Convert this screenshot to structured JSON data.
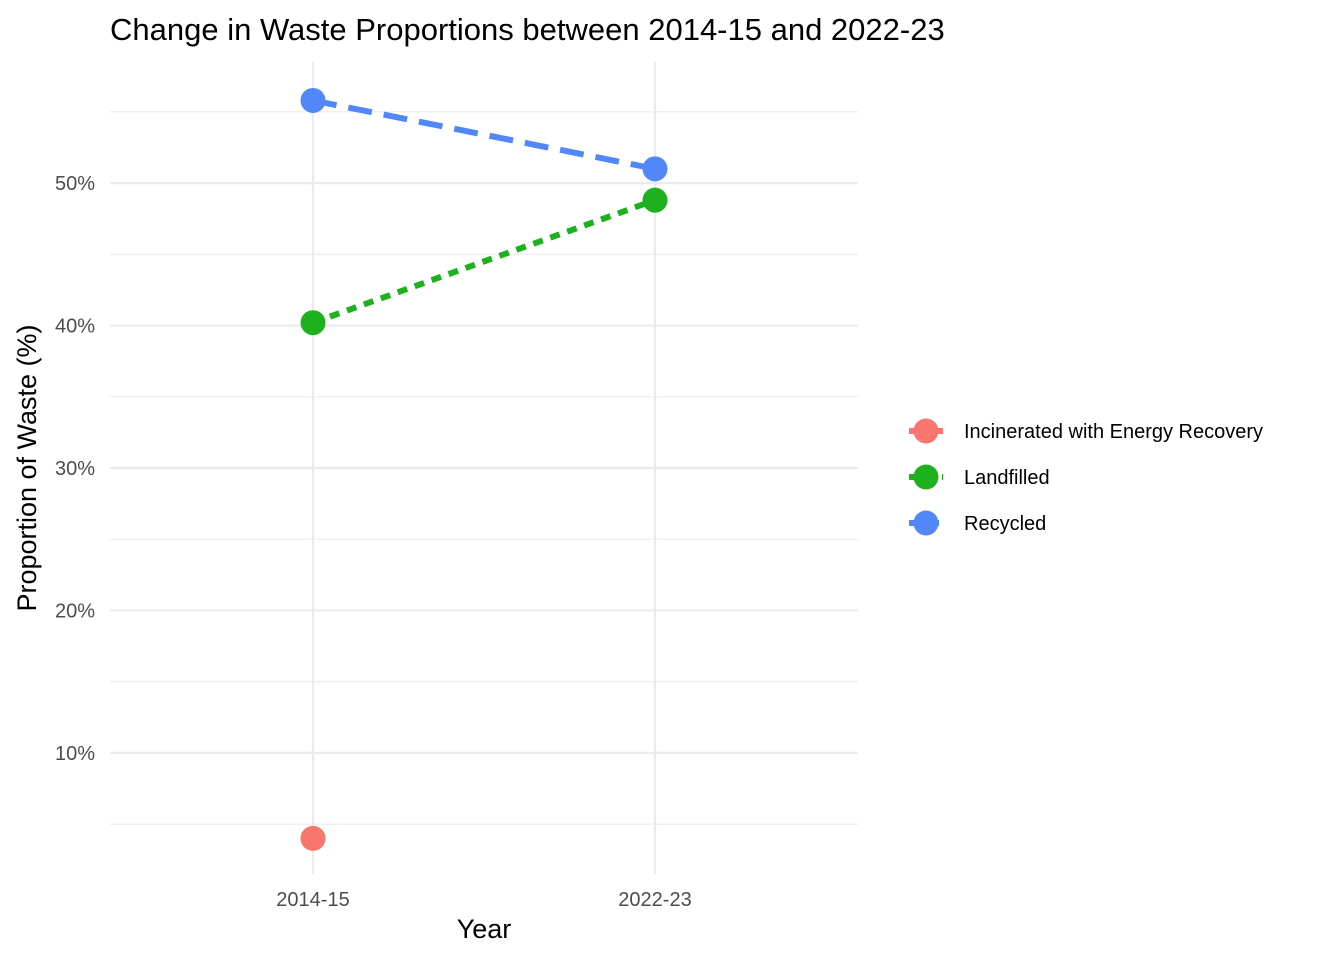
{
  "chart_data": {
    "type": "line",
    "title": "Change in Waste Proportions between 2014-15 and 2022-23",
    "xlabel": "Year",
    "ylabel": "Proportion of Waste (%)",
    "categories": [
      "2014-15",
      "2022-23"
    ],
    "ylim": [
      1.5,
      58.5
    ],
    "yticks": [
      10,
      20,
      30,
      40,
      50
    ],
    "ytick_labels": [
      "10%",
      "20%",
      "30%",
      "40%",
      "50%"
    ],
    "grid": true,
    "legend_position": "right",
    "series": [
      {
        "name": "Incinerated with Energy Recovery",
        "values": [
          4.0,
          null
        ],
        "color": "#F8766D",
        "dash": "solid"
      },
      {
        "name": "Landfilled",
        "values": [
          40.2,
          48.8
        ],
        "color": "#1EB11E",
        "dash": "dotted"
      },
      {
        "name": "Recycled",
        "values": [
          55.8,
          51.0
        ],
        "color": "#5187F8",
        "dash": "dashed"
      }
    ]
  }
}
